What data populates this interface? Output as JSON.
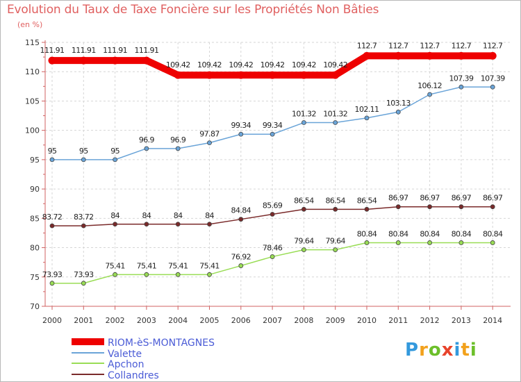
{
  "title": "Evolution du Taux de Taxe Foncière sur les Propriétés Non Bâties",
  "subtitle": "(en %)",
  "logo": {
    "letters": [
      "P",
      "r",
      "o",
      "x",
      "i",
      "t",
      "i"
    ],
    "colors": [
      "#3399dd",
      "#f2a11c",
      "#6cbf2a",
      "#e8432b",
      "#3399dd",
      "#f2a11c",
      "#6cbf2a"
    ]
  },
  "chart_data": {
    "type": "line",
    "title": "Evolution du Taux de Taxe Foncière sur les Propriétés Non Bâties",
    "ylabel": "(en %)",
    "xlabel": "",
    "x": [
      "2000",
      "2001",
      "2002",
      "2003",
      "2004",
      "2005",
      "2006",
      "2007",
      "2008",
      "2009",
      "2010",
      "2011",
      "2012",
      "2013",
      "2014"
    ],
    "ylim": [
      70,
      115
    ],
    "yticks": [
      70,
      75,
      80,
      85,
      90,
      95,
      100,
      105,
      110,
      115
    ],
    "grid": true,
    "legend": "bottom-left",
    "series": [
      {
        "name": "RIOM-èS-MONTAGNES",
        "color": "#ee0000",
        "values": [
          111.91,
          111.91,
          111.91,
          111.91,
          109.42,
          109.42,
          109.42,
          109.42,
          109.42,
          109.42,
          112.7,
          112.7,
          112.7,
          112.7,
          112.7
        ],
        "labels": [
          "111.91",
          "111.91",
          "111.91",
          "111.91",
          "109.42",
          "109.42",
          "109.42",
          "109.42",
          "109.42",
          "109.42",
          "112.7",
          "112.7",
          "112.7",
          "112.7",
          "112.7"
        ]
      },
      {
        "name": "Valette",
        "color": "#6aa4d8",
        "values": [
          95,
          95,
          95,
          96.9,
          96.9,
          97.87,
          99.34,
          99.34,
          101.32,
          101.32,
          102.11,
          103.13,
          106.12,
          107.39,
          107.39
        ],
        "labels": [
          "95",
          "95",
          "95",
          "96.9",
          "96.9",
          "97.87",
          "99.34",
          "99.34",
          "101.32",
          "101.32",
          "102.11",
          "103.13",
          "106.12",
          "107.39",
          "107.39"
        ]
      },
      {
        "name": "Apchon",
        "color": "#99dd55",
        "values": [
          73.93,
          73.93,
          75.41,
          75.41,
          75.41,
          75.41,
          76.92,
          78.46,
          79.64,
          79.64,
          80.84,
          80.84,
          80.84,
          80.84,
          80.84
        ],
        "labels": [
          "73.93",
          "73.93",
          "75.41",
          "75.41",
          "75.41",
          "75.41",
          "76.92",
          "78.46",
          "79.64",
          "79.64",
          "80.84",
          "80.84",
          "80.84",
          "80.84",
          "80.84"
        ]
      },
      {
        "name": "Collandres",
        "color": "#7a2a2a",
        "values": [
          83.72,
          83.72,
          84,
          84,
          84,
          84,
          84.84,
          85.69,
          86.54,
          86.54,
          86.54,
          86.97,
          86.97,
          86.97,
          86.97
        ],
        "labels": [
          "83.72",
          "83.72",
          "84",
          "84",
          "84",
          "84",
          "84.84",
          "85.69",
          "86.54",
          "86.54",
          "86.54",
          "86.97",
          "86.97",
          "86.97",
          "86.97"
        ]
      }
    ]
  }
}
